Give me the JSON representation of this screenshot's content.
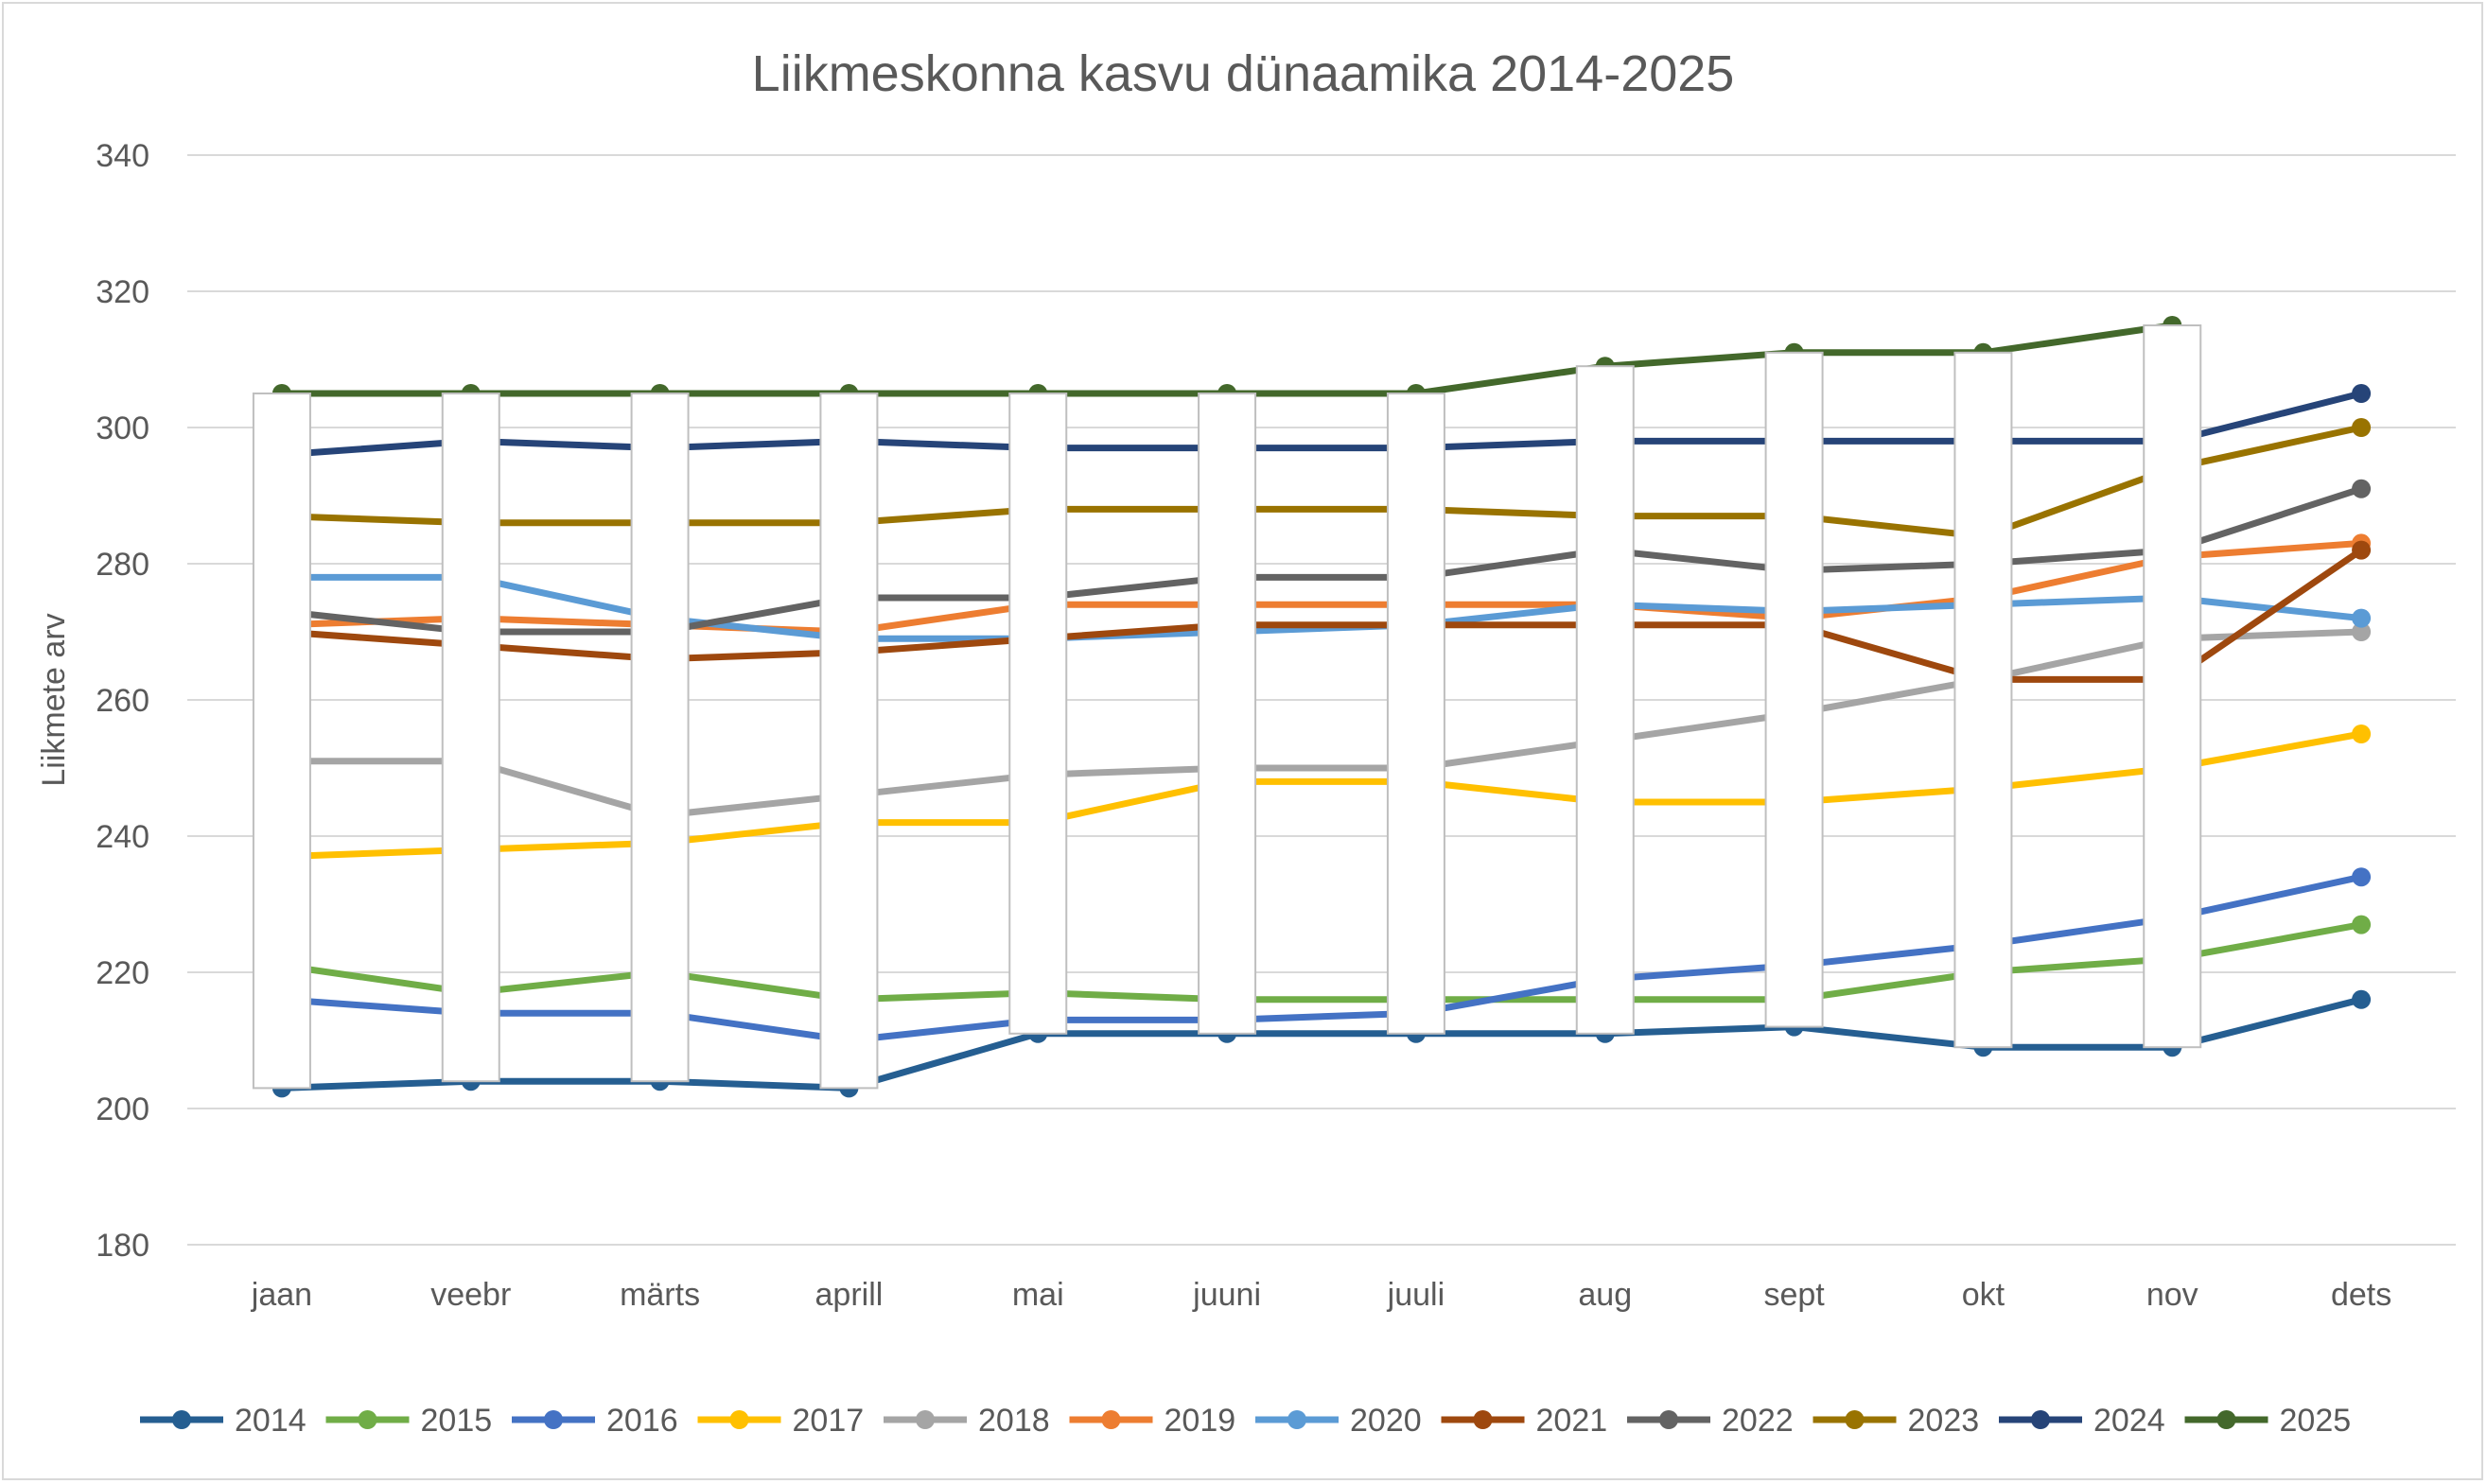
{
  "chart_data": {
    "type": "line",
    "title": "Liikmeskonna kasvu dünaamika 2014-2025",
    "xlabel": "",
    "ylabel": "Liikmete arv",
    "ylim": [
      180,
      340
    ],
    "yticks": [
      180,
      200,
      220,
      240,
      260,
      280,
      300,
      320,
      340
    ],
    "grid": true,
    "legend_position": "bottom",
    "up_down_bars": "white bars spanning from the 2014 series to the 2025 series for each month",
    "categories": [
      "jaan",
      "veebr",
      "märts",
      "aprill",
      "mai",
      "juuni",
      "juuli",
      "aug",
      "sept",
      "okt",
      "nov",
      "dets"
    ],
    "series": [
      {
        "name": "2014",
        "color": "#255E91",
        "values": [
          203,
          204,
          204,
          203,
          211,
          211,
          211,
          211,
          212,
          209,
          209,
          216
        ]
      },
      {
        "name": "2015",
        "color": "#70AD47",
        "values": [
          221,
          217,
          220,
          216,
          217,
          216,
          216,
          216,
          216,
          220,
          222,
          227
        ]
      },
      {
        "name": "2016",
        "color": "#4472C4",
        "values": [
          216,
          214,
          214,
          210,
          213,
          213,
          214,
          219,
          221,
          224,
          228,
          234
        ]
      },
      {
        "name": "2017",
        "color": "#FFC000",
        "values": [
          237,
          238,
          239,
          242,
          242,
          248,
          248,
          245,
          245,
          247,
          250,
          255
        ]
      },
      {
        "name": "2018",
        "color": "#A5A5A5",
        "values": [
          251,
          251,
          243,
          246,
          249,
          250,
          250,
          254,
          258,
          263,
          269,
          270
        ]
      },
      {
        "name": "2019",
        "color": "#ED7D31",
        "values": [
          271,
          272,
          271,
          270,
          274,
          274,
          274,
          274,
          272,
          275,
          281,
          283
        ]
      },
      {
        "name": "2020",
        "color": "#5B9BD5",
        "values": [
          278,
          278,
          272,
          269,
          269,
          270,
          271,
          274,
          273,
          274,
          275,
          272
        ]
      },
      {
        "name": "2021",
        "color": "#9E480E",
        "values": [
          270,
          268,
          266,
          267,
          269,
          271,
          271,
          271,
          271,
          263,
          263,
          282
        ]
      },
      {
        "name": "2022",
        "color": "#636363",
        "values": [
          273,
          270,
          270,
          275,
          275,
          278,
          278,
          282,
          279,
          280,
          282,
          291
        ]
      },
      {
        "name": "2023",
        "color": "#997300",
        "values": [
          287,
          286,
          286,
          286,
          288,
          288,
          288,
          287,
          287,
          284,
          294,
          300
        ]
      },
      {
        "name": "2024",
        "color": "#264478",
        "values": [
          296,
          298,
          297,
          298,
          297,
          297,
          297,
          298,
          298,
          298,
          298,
          305
        ]
      },
      {
        "name": "2025",
        "color": "#43682B",
        "values": [
          305,
          305,
          305,
          305,
          305,
          305,
          305,
          309,
          311,
          311,
          315,
          null
        ]
      }
    ]
  }
}
